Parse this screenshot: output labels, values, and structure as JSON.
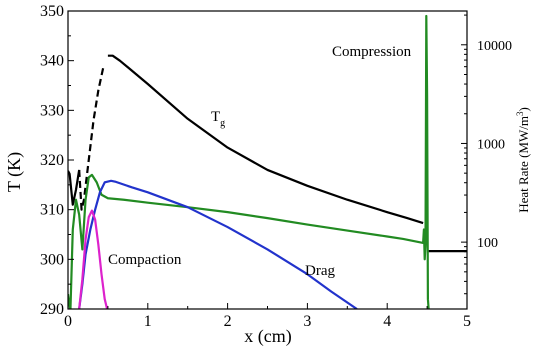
{
  "chart_data": {
    "type": "line",
    "xlabel": "x (cm)",
    "ylabel": "T (K)",
    "y2label": "Heat Rate (MW/m",
    "y2label_sup": "3",
    "y2label_tail": ")",
    "xlim": [
      0,
      5
    ],
    "ylim": [
      290,
      350
    ],
    "y2lim": [
      21,
      22000
    ],
    "y2scale": "log",
    "x_ticks": [
      "0",
      "1",
      "2",
      "3",
      "4",
      "5"
    ],
    "y_ticks": [
      "290",
      "300",
      "310",
      "320",
      "330",
      "340",
      "350"
    ],
    "y2_ticks": [
      "100",
      "1000",
      "10000"
    ],
    "grid": false,
    "annotations": {
      "tg_main": "T",
      "tg_sub": "g",
      "compression": "Compression",
      "compaction": "Compaction",
      "drag": "Drag"
    },
    "series": [
      {
        "color": "#000000",
        "axis": "left",
        "points": [
          [
            0.0,
            317.8
          ],
          [
            0.02,
            317.2
          ],
          [
            0.06,
            311.0
          ],
          [
            0.1,
            314.0
          ],
          [
            0.14,
            318.0
          ],
          [
            0.17,
            310.0
          ],
          [
            0.2,
            312.0
          ],
          [
            0.26,
            320.0
          ],
          [
            0.32,
            328.0
          ],
          [
            0.38,
            334.0
          ],
          [
            0.44,
            338.5
          ],
          [
            0.5,
            341.0
          ],
          [
            0.56,
            341.0
          ],
          [
            0.65,
            340.0
          ],
          [
            0.8,
            338.0
          ],
          [
            1.0,
            335.3
          ],
          [
            1.5,
            328.3
          ],
          [
            2.0,
            322.5
          ],
          [
            2.5,
            318.0
          ],
          [
            3.0,
            314.8
          ],
          [
            3.5,
            312.0
          ],
          [
            4.0,
            309.5
          ],
          [
            4.25,
            308.3
          ],
          [
            4.45,
            307.3
          ]
        ],
        "dashed_x_range": [
          0.14,
          0.48
        ]
      },
      {
        "color": "#228b22",
        "axis": "left",
        "points": [
          [
            0.0,
            293.0
          ],
          [
            0.03,
            289.5
          ],
          [
            0.06,
            306.0
          ],
          [
            0.1,
            312.0
          ],
          [
            0.14,
            309.0
          ],
          [
            0.18,
            302.0
          ],
          [
            0.22,
            312.0
          ],
          [
            0.26,
            316.5
          ],
          [
            0.3,
            317.0
          ],
          [
            0.36,
            315.5
          ],
          [
            0.42,
            313.0
          ],
          [
            0.5,
            312.3
          ],
          [
            0.7,
            312.0
          ],
          [
            1.0,
            311.4
          ],
          [
            1.5,
            310.5
          ],
          [
            2.0,
            309.5
          ],
          [
            2.5,
            308.3
          ],
          [
            3.0,
            307.0
          ],
          [
            3.5,
            305.8
          ],
          [
            4.0,
            304.6
          ],
          [
            4.2,
            304.1
          ],
          [
            4.45,
            303.3
          ],
          [
            4.46,
            306.0
          ],
          [
            4.47,
            300.0
          ],
          [
            4.48,
            303.0
          ],
          [
            4.49,
            349.0
          ],
          [
            4.5,
            333.0
          ],
          [
            4.51,
            292.0
          ],
          [
            4.52,
            289.8
          ]
        ]
      },
      {
        "color": "#2233cc",
        "axis": "left",
        "points": [
          [
            0.14,
            290.0
          ],
          [
            0.18,
            295.0
          ],
          [
            0.22,
            301.0
          ],
          [
            0.28,
            306.0
          ],
          [
            0.34,
            310.0
          ],
          [
            0.4,
            313.5
          ],
          [
            0.46,
            315.5
          ],
          [
            0.54,
            315.8
          ],
          [
            0.6,
            315.6
          ],
          [
            0.8,
            314.5
          ],
          [
            1.0,
            313.5
          ],
          [
            1.5,
            310.5
          ],
          [
            2.0,
            306.5
          ],
          [
            2.5,
            302.0
          ],
          [
            3.0,
            297.0
          ],
          [
            3.3,
            293.5
          ],
          [
            3.62,
            290.0
          ]
        ]
      },
      {
        "color": "#dd22cc",
        "axis": "left",
        "points": [
          [
            0.14,
            290.0
          ],
          [
            0.18,
            296.0
          ],
          [
            0.22,
            304.0
          ],
          [
            0.26,
            308.5
          ],
          [
            0.3,
            309.8
          ],
          [
            0.34,
            308.0
          ],
          [
            0.38,
            303.0
          ],
          [
            0.42,
            297.0
          ],
          [
            0.46,
            292.0
          ],
          [
            0.49,
            290.0
          ]
        ]
      },
      {
        "color": "#000000",
        "axis": "right",
        "points": [
          [
            4.52,
            81
          ],
          [
            5.0,
            81
          ]
        ]
      }
    ]
  }
}
